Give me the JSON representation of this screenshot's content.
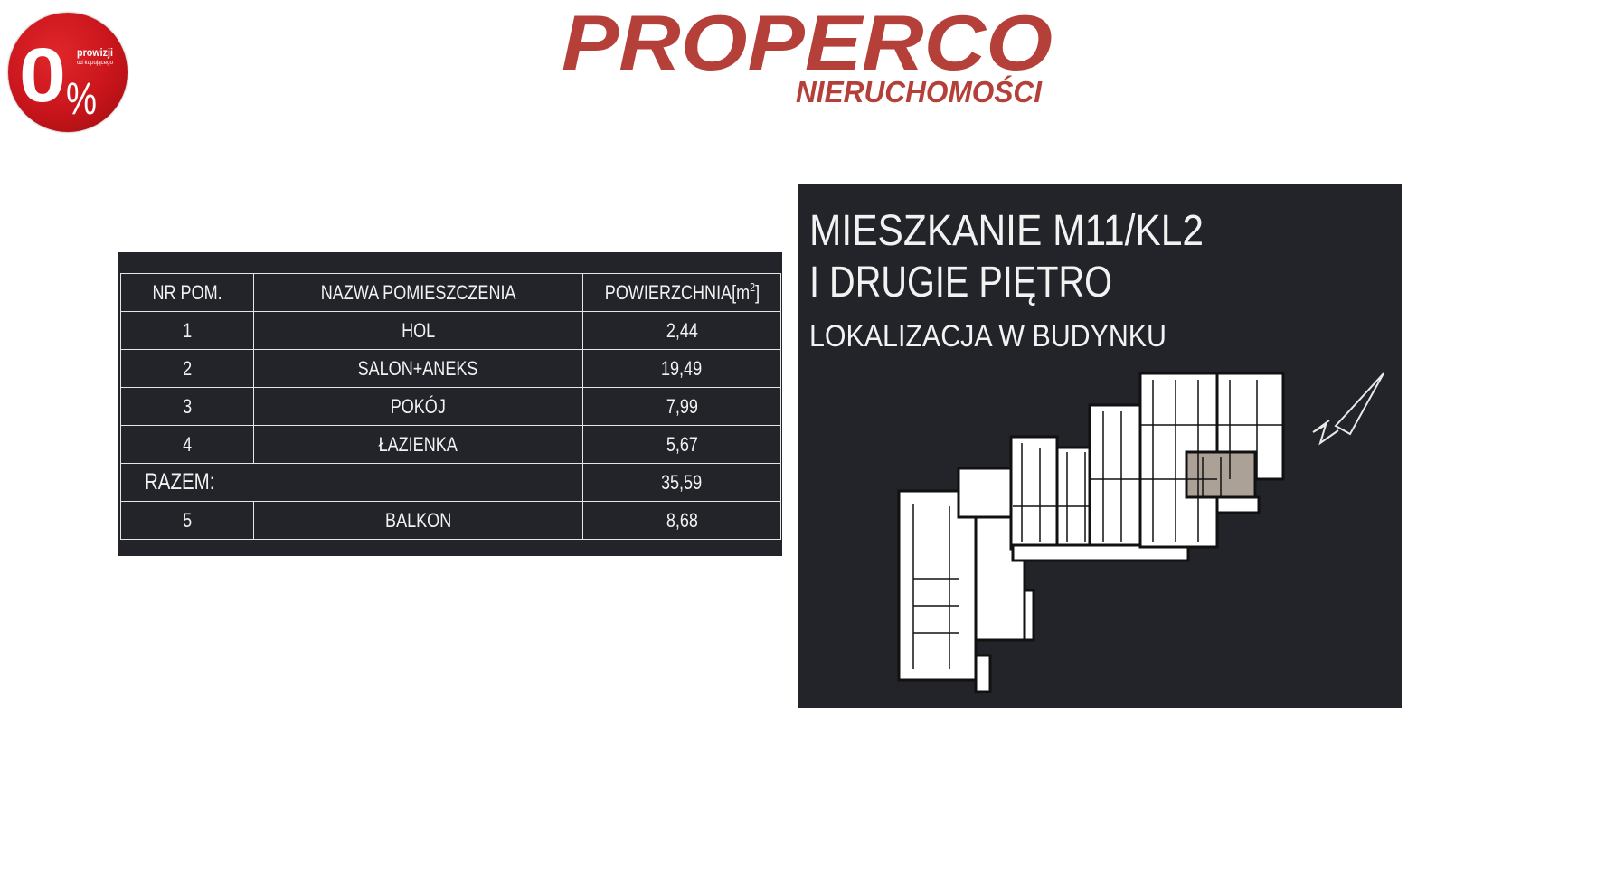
{
  "brand": {
    "name": "PROPERCO",
    "subtitle": "NIERUCHOMOŚCI",
    "color": "#b5403a"
  },
  "badge": {
    "big_text": "0",
    "percent": "%",
    "line1": "prowizji",
    "line2": "od kupującego",
    "color": "#c8151b"
  },
  "table": {
    "headers": [
      "NR POM.",
      "NAZWA POMIESZCZENIA",
      "POWIERZCHNIA[m",
      "2",
      "]"
    ],
    "rows": [
      {
        "nr": "1",
        "name": "HOL",
        "area": "2,44"
      },
      {
        "nr": "2",
        "name": "SALON+ANEKS",
        "area": "19,49"
      },
      {
        "nr": "3",
        "name": "POKÓJ",
        "area": "7,99"
      },
      {
        "nr": "4",
        "name": "ŁAZIENKA",
        "area": "5,67"
      }
    ],
    "total": {
      "label": "RAZEM:",
      "area": "35,59"
    },
    "extra": {
      "nr": "5",
      "name": "BALKON",
      "area": "8,68"
    }
  },
  "panel": {
    "title_line1": "MIESZKANIE M11/KL2",
    "title_line2": "I DRUGIE PIĘTRO",
    "subtitle": "LOKALIZACJA W BUDYNKU",
    "background": "#222429",
    "highlight_color": "#aca196",
    "compass_icon": "north-arrow-icon"
  }
}
